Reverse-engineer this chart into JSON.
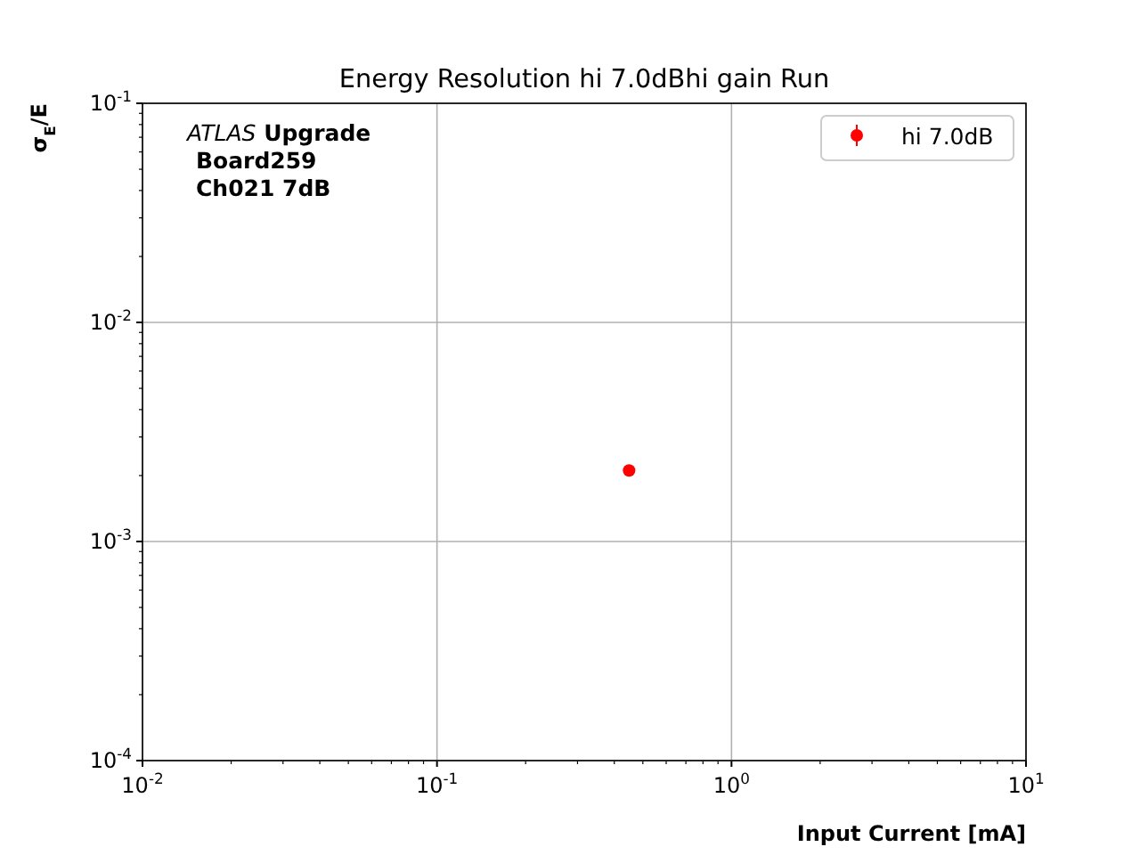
{
  "chart_data": {
    "type": "scatter",
    "title": "Energy Resolution hi 7.0dBhi gain Run",
    "xlabel": "Input Current [mA]",
    "ylabel": "σ$_{E}$/E",
    "annotations": [
      "ATLAS Upgrade",
      "Board259",
      "Ch021 7dB"
    ],
    "series": [
      {
        "name": "hi 7.0dB",
        "color": "#ff0000",
        "x": [
          0.449
        ],
        "values": [
          0.00211
        ]
      }
    ],
    "log": "xy",
    "xlim": [
      0.01,
      10
    ],
    "ylim": [
      0.0001,
      0.1
    ],
    "xticks": [
      {
        "value": 0.01,
        "label": "10$^{-2}$"
      },
      {
        "value": 0.1,
        "label": "10$^{-1}$"
      },
      {
        "value": 1,
        "label": "10$^{0}$"
      },
      {
        "value": 10,
        "label": "10$^{1}$"
      }
    ],
    "yticks": [
      {
        "value": 0.0001,
        "label": "10$^{-4}$"
      },
      {
        "value": 0.001,
        "label": "10$^{-3}$"
      },
      {
        "value": 0.01,
        "label": "10$^{-2}$"
      },
      {
        "value": 0.1,
        "label": "10$^{-1}$"
      }
    ],
    "grid": true,
    "legend": "top right",
    "marker": "circle"
  }
}
